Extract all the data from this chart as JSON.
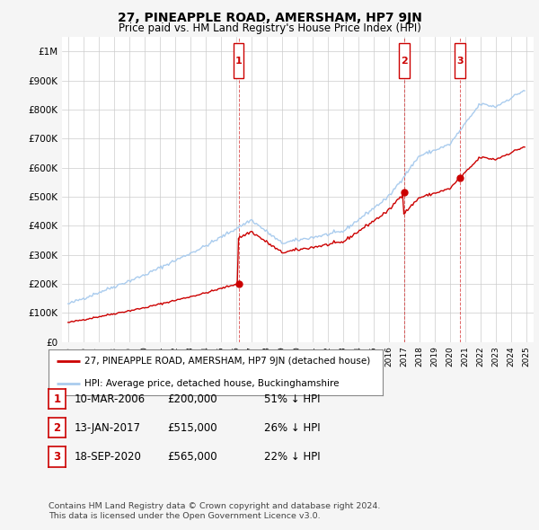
{
  "title": "27, PINEAPPLE ROAD, AMERSHAM, HP7 9JN",
  "subtitle": "Price paid vs. HM Land Registry's House Price Index (HPI)",
  "ylim": [
    0,
    1050000
  ],
  "yticks": [
    0,
    100000,
    200000,
    300000,
    400000,
    500000,
    600000,
    700000,
    800000,
    900000,
    1000000
  ],
  "ytick_labels": [
    "£0",
    "£100K",
    "£200K",
    "£300K",
    "£400K",
    "£500K",
    "£600K",
    "£700K",
    "£800K",
    "£900K",
    "£1M"
  ],
  "hpi_color": "#aaccee",
  "price_color": "#cc0000",
  "legend_house": "27, PINEAPPLE ROAD, AMERSHAM, HP7 9JN (detached house)",
  "legend_hpi": "HPI: Average price, detached house, Buckinghamshire",
  "transactions": [
    {
      "num": 1,
      "date": "10-MAR-2006",
      "price": 200000,
      "price_str": "£200,000",
      "pct": "51% ↓ HPI"
    },
    {
      "num": 2,
      "date": "13-JAN-2017",
      "price": 515000,
      "price_str": "£515,000",
      "pct": "26% ↓ HPI"
    },
    {
      "num": 3,
      "date": "18-SEP-2020",
      "price": 565000,
      "price_str": "£565,000",
      "pct": "22% ↓ HPI"
    }
  ],
  "footnote1": "Contains HM Land Registry data © Crown copyright and database right 2024.",
  "footnote2": "This data is licensed under the Open Government Licence v3.0.",
  "background_color": "#f5f5f5",
  "plot_bg_color": "#ffffff",
  "grid_color": "#cccccc"
}
